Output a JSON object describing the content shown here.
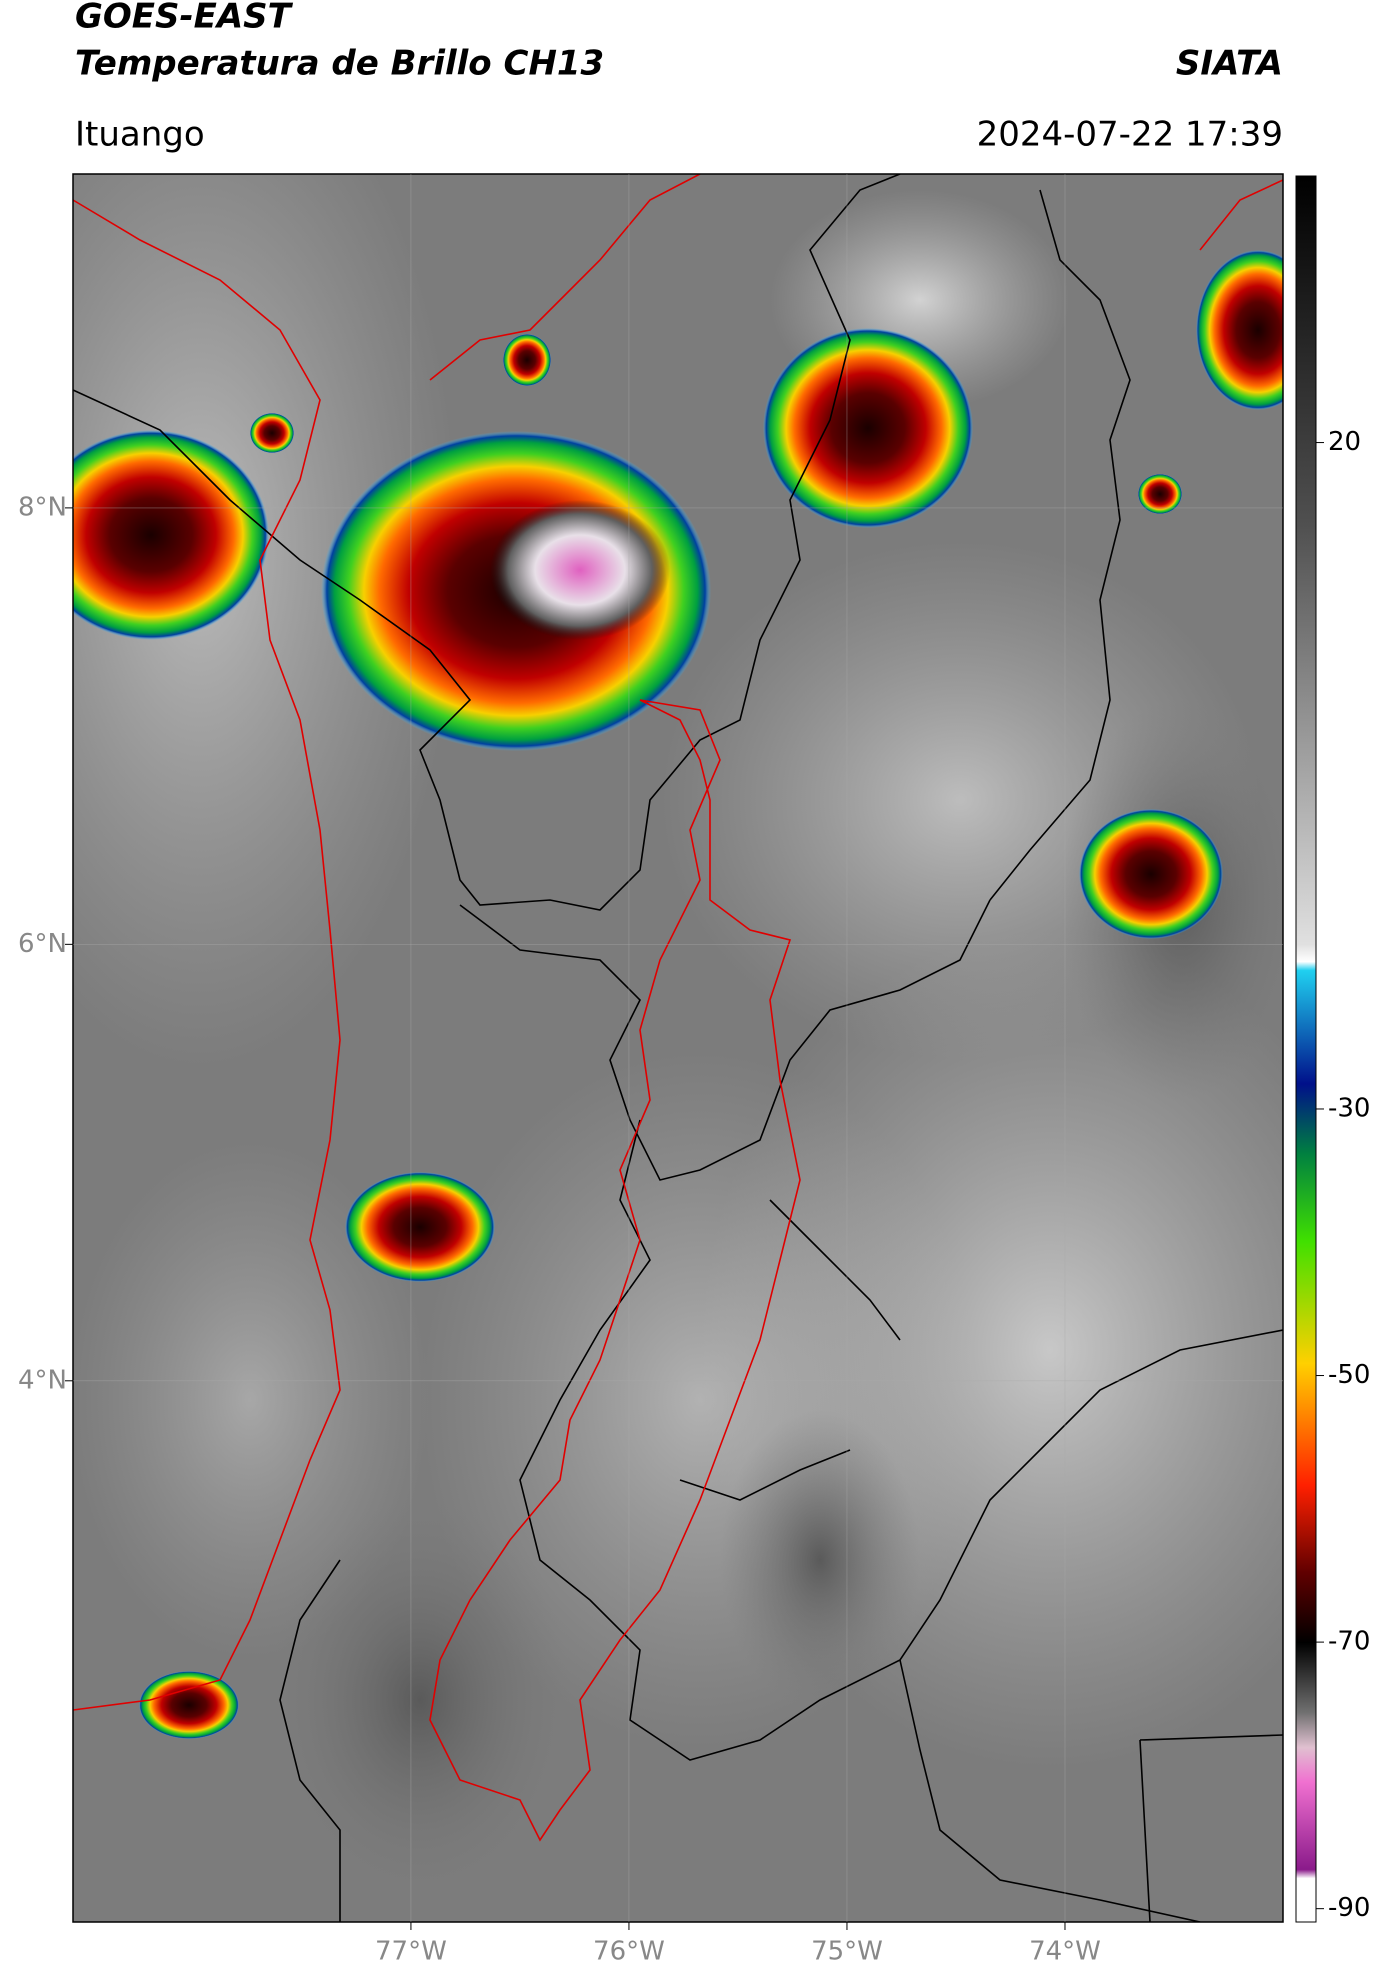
{
  "header": {
    "title": "GOES-EAST",
    "subtitle": "Temperatura de Brillo CH13",
    "source": "SIATA",
    "location": "Ituango",
    "datetime": "2024-07-22 17:39"
  },
  "map": {
    "xlim": [
      -78.55,
      -73.0
    ],
    "ylim": [
      1.52,
      9.53
    ],
    "xticks": [
      {
        "value": -77,
        "label": "77°W"
      },
      {
        "value": -76,
        "label": "76°W"
      },
      {
        "value": -75,
        "label": "75°W"
      },
      {
        "value": -74,
        "label": "74°W"
      }
    ],
    "yticks": [
      {
        "value": 8,
        "label": "8°N"
      },
      {
        "value": 6,
        "label": "6°N"
      },
      {
        "value": 4,
        "label": "4°N"
      }
    ],
    "grid": true
  },
  "colorbar": {
    "lim": [
      -91,
      40
    ],
    "ticks": [
      20,
      -30,
      -50,
      -70,
      -90
    ]
  }
}
